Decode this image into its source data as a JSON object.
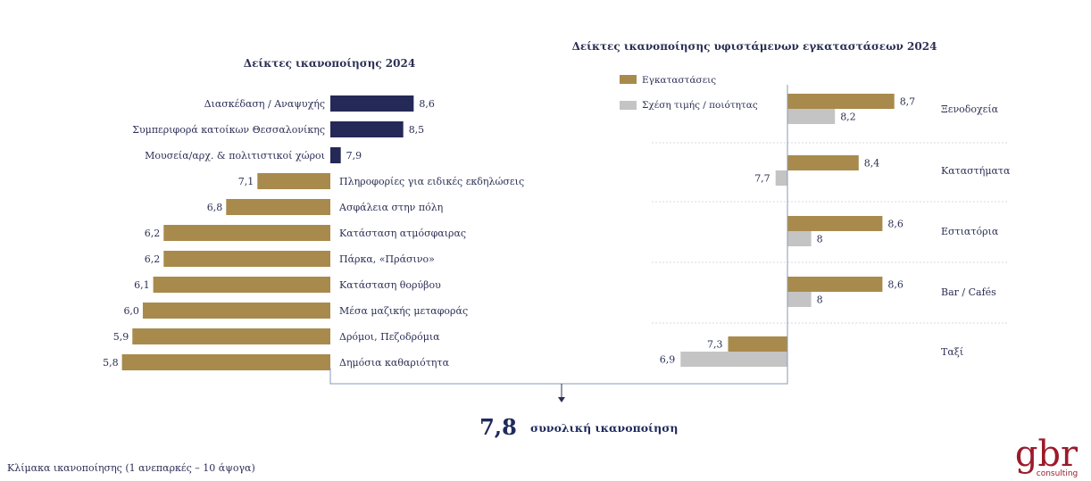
{
  "colors": {
    "navy": "#252957",
    "gold": "#a88a4c",
    "gray": "#c4c4c4",
    "text": "#2b2f55",
    "accent": "#9b1b2a"
  },
  "chart_data": [
    {
      "type": "bar",
      "title": "Δείκτες ικανοποίησης 2024",
      "reference_value": 7.8,
      "categories": [
        "Διασκέδαση / Αναψυχής",
        "Συμπεριφορά κατοίκων Θεσσαλονίκης",
        "Μουσεία/αρχ. & πολιτιστικοί χώροι",
        "Πληροφορίες για ειδικές εκδηλώσεις",
        "Ασφάλεια στην πόλη",
        "Κατάσταση ατμόσφαιρας",
        "Πάρκα, «Πράσινο»",
        "Κατάσταση θορύβου",
        "Μέσα μαζικής μεταφοράς",
        "Δρόμοι, Πεζοδρόμια",
        "Δημόσια καθαριότητα"
      ],
      "values": [
        8.6,
        8.5,
        7.9,
        7.1,
        6.8,
        6.2,
        6.2,
        6.1,
        6.0,
        5.9,
        5.8
      ],
      "value_labels": [
        "8,6",
        "8,5",
        "7,9",
        "7,1",
        "6,8",
        "6,2",
        "6,2",
        "6,1",
        "6,0",
        "5,9",
        "5,8"
      ]
    },
    {
      "type": "bar",
      "title": "Δείκτες ικανοποίησης υφιστάμενων εγκαταστάσεων 2024",
      "reference_value": 7.8,
      "legend_position": "top-left",
      "categories": [
        "Ξενοδοχεία",
        "Καταστήματα",
        "Εστιατόρια",
        "Bar / Cafés",
        "Ταξί"
      ],
      "series": [
        {
          "name": "Εγκαταστάσεις",
          "values": [
            8.7,
            8.4,
            8.6,
            8.6,
            7.3
          ],
          "value_labels": [
            "8,7",
            "8,4",
            "8,6",
            "8,6",
            "7,3"
          ]
        },
        {
          "name": "Σχέση τιμής  / ποιότητας",
          "values": [
            8.2,
            7.7,
            8.0,
            8.0,
            6.9
          ],
          "value_labels": [
            "8,2",
            "7,7",
            "8",
            "8",
            "6,9"
          ]
        }
      ]
    }
  ],
  "total": {
    "value": "7,8",
    "label": "συνολική ικανοποίηση"
  },
  "scale_note": "Κλίμακα ικανοποίησης (1 ανεπαρκές – 10 άψογα)",
  "logo": {
    "main": "gbr",
    "sub": "consulting"
  }
}
